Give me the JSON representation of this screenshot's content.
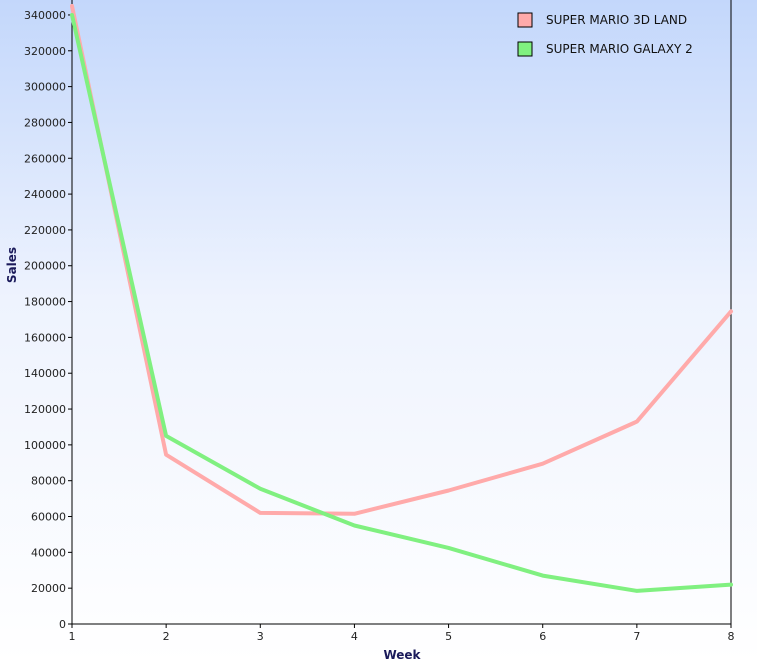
{
  "chart_data": {
    "type": "line",
    "title": "",
    "xlabel": "Week",
    "ylabel": "Sales",
    "x": [
      1,
      2,
      3,
      4,
      5,
      6,
      7,
      8
    ],
    "xlim": [
      1,
      8
    ],
    "ylim": [
      0,
      345000
    ],
    "y_ticks": [
      0,
      20000,
      40000,
      60000,
      80000,
      100000,
      120000,
      140000,
      160000,
      180000,
      200000,
      220000,
      240000,
      260000,
      280000,
      300000,
      320000,
      340000
    ],
    "grid": false,
    "legend_position": "top-right",
    "series": [
      {
        "name": "SUPER MARIO 3D LAND",
        "color": "#ffaaaa",
        "values": [
          345000,
          94500,
          62000,
          61500,
          74500,
          89500,
          113000,
          174500
        ]
      },
      {
        "name": "SUPER MARIO GALAXY 2",
        "color": "#80f080",
        "values": [
          340000,
          105000,
          75500,
          55000,
          42500,
          27000,
          18500,
          22000
        ]
      }
    ]
  }
}
